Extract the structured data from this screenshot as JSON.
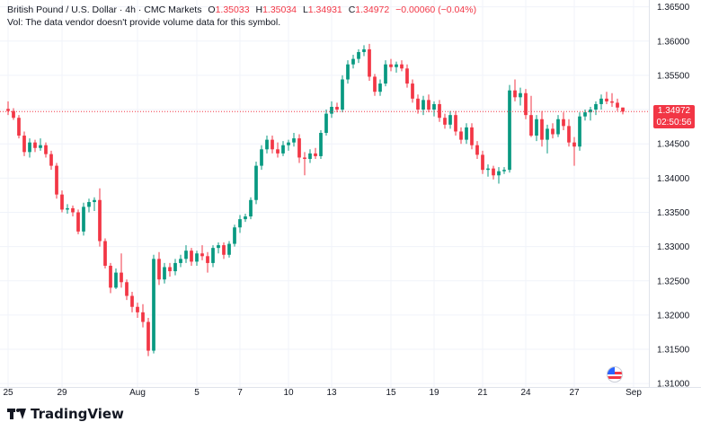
{
  "legend": {
    "symbol": "British Pound / U.S. Dollar · 4h · CMC Markets",
    "o_label": "O",
    "o_value": "1.35033",
    "h_label": "H",
    "h_value": "1.35034",
    "l_label": "L",
    "l_value": "1.34931",
    "c_label": "C",
    "c_value": "1.34972",
    "change": "−0.00060 (−0.04%)"
  },
  "vol_message": "Vol: The data vendor doesn't provide volume data for this symbol.",
  "price_tag": {
    "price": "1.34972",
    "countdown": "02:50:56"
  },
  "logo_text": "TradingView",
  "colors": {
    "up": "#089981",
    "down": "#f23645",
    "grid": "#f0f3fa",
    "axis_text": "#131722"
  },
  "chart_data": {
    "type": "candlestick",
    "title": "British Pound / U.S. Dollar",
    "interval": "4h",
    "x_tick_labels": [
      "25",
      "29",
      "Aug",
      "5",
      "7",
      "10",
      "13",
      "15",
      "19",
      "21",
      "24",
      "27",
      "Sep"
    ],
    "y_tick_labels": [
      "1.36500",
      "1.36000",
      "1.35500",
      "1.35000",
      "1.34500",
      "1.34000",
      "1.33500",
      "1.33000",
      "1.32500",
      "1.32000",
      "1.31500",
      "1.31000"
    ],
    "ylim": [
      1.3095,
      1.366
    ],
    "last_price": 1.34972,
    "last_price_line": "dotted",
    "grid": true,
    "candles": [
      [
        1.3501,
        1.3512,
        1.3492,
        1.3498
      ],
      [
        1.3498,
        1.3502,
        1.3485,
        1.3488
      ],
      [
        1.3488,
        1.3492,
        1.3458,
        1.3462
      ],
      [
        1.3462,
        1.3468,
        1.3432,
        1.3438
      ],
      [
        1.3438,
        1.3458,
        1.343,
        1.3452
      ],
      [
        1.3452,
        1.3456,
        1.3438,
        1.3444
      ],
      [
        1.3444,
        1.3458,
        1.344,
        1.3448
      ],
      [
        1.3448,
        1.3452,
        1.343,
        1.3435
      ],
      [
        1.3435,
        1.344,
        1.3412,
        1.3418
      ],
      [
        1.3418,
        1.3422,
        1.337,
        1.3376
      ],
      [
        1.3376,
        1.3382,
        1.335,
        1.3354
      ],
      [
        1.3354,
        1.3362,
        1.3348,
        1.3356
      ],
      [
        1.3356,
        1.336,
        1.3344,
        1.335
      ],
      [
        1.335,
        1.3354,
        1.3318,
        1.3322
      ],
      [
        1.3322,
        1.3364,
        1.3316,
        1.3358
      ],
      [
        1.3358,
        1.337,
        1.335,
        1.3365
      ],
      [
        1.3365,
        1.3372,
        1.3352,
        1.3368
      ],
      [
        1.3368,
        1.3385,
        1.33,
        1.3308
      ],
      [
        1.3308,
        1.3312,
        1.3268,
        1.3272
      ],
      [
        1.3272,
        1.3276,
        1.3232,
        1.324
      ],
      [
        1.324,
        1.3268,
        1.3238,
        1.3262
      ],
      [
        1.3262,
        1.329,
        1.324,
        1.3248
      ],
      [
        1.3248,
        1.3252,
        1.3222,
        1.3228
      ],
      [
        1.3228,
        1.3234,
        1.3204,
        1.3212
      ],
      [
        1.3212,
        1.3218,
        1.3196,
        1.3204
      ],
      [
        1.3204,
        1.3216,
        1.3182,
        1.319
      ],
      [
        1.319,
        1.3196,
        1.314,
        1.3148
      ],
      [
        1.3148,
        1.3288,
        1.3144,
        1.3282
      ],
      [
        1.3282,
        1.3292,
        1.3244,
        1.3252
      ],
      [
        1.3252,
        1.3276,
        1.3246,
        1.327
      ],
      [
        1.327,
        1.3276,
        1.3256,
        1.3264
      ],
      [
        1.3264,
        1.3282,
        1.3258,
        1.3276
      ],
      [
        1.3276,
        1.3288,
        1.327,
        1.3282
      ],
      [
        1.3282,
        1.3302,
        1.3276,
        1.3294
      ],
      [
        1.3294,
        1.3298,
        1.3272,
        1.3278
      ],
      [
        1.3278,
        1.3294,
        1.3272,
        1.329
      ],
      [
        1.329,
        1.3302,
        1.328,
        1.3286
      ],
      [
        1.3286,
        1.3292,
        1.3262,
        1.3276
      ],
      [
        1.3276,
        1.3302,
        1.327,
        1.3298
      ],
      [
        1.3298,
        1.3306,
        1.329,
        1.3302
      ],
      [
        1.3302,
        1.3306,
        1.3282,
        1.3288
      ],
      [
        1.3288,
        1.3308,
        1.3284,
        1.3304
      ],
      [
        1.3304,
        1.3332,
        1.33,
        1.3328
      ],
      [
        1.3328,
        1.3346,
        1.332,
        1.334
      ],
      [
        1.334,
        1.3348,
        1.3336,
        1.3344
      ],
      [
        1.3344,
        1.3372,
        1.334,
        1.3368
      ],
      [
        1.3368,
        1.3424,
        1.3362,
        1.3418
      ],
      [
        1.3418,
        1.3448,
        1.3412,
        1.3442
      ],
      [
        1.3442,
        1.3462,
        1.3436,
        1.3456
      ],
      [
        1.3456,
        1.3462,
        1.3436,
        1.3442
      ],
      [
        1.3442,
        1.3452,
        1.343,
        1.3436
      ],
      [
        1.3436,
        1.3454,
        1.3432,
        1.3448
      ],
      [
        1.3448,
        1.3456,
        1.344,
        1.3452
      ],
      [
        1.3452,
        1.3466,
        1.3446,
        1.3458
      ],
      [
        1.3458,
        1.3464,
        1.3422,
        1.343
      ],
      [
        1.343,
        1.3438,
        1.3404,
        1.3428
      ],
      [
        1.3428,
        1.3442,
        1.3422,
        1.3436
      ],
      [
        1.3436,
        1.3444,
        1.3428,
        1.3432
      ],
      [
        1.3432,
        1.347,
        1.3428,
        1.3466
      ],
      [
        1.3466,
        1.35,
        1.3462,
        1.3494
      ],
      [
        1.3494,
        1.3512,
        1.3488,
        1.3504
      ],
      [
        1.3504,
        1.351,
        1.3496,
        1.35
      ],
      [
        1.35,
        1.355,
        1.3496,
        1.3544
      ],
      [
        1.3544,
        1.3572,
        1.3538,
        1.3566
      ],
      [
        1.3566,
        1.358,
        1.356,
        1.3574
      ],
      [
        1.3574,
        1.3588,
        1.3568,
        1.3584
      ],
      [
        1.3584,
        1.3594,
        1.3578,
        1.3588
      ],
      [
        1.3588,
        1.3596,
        1.3542,
        1.3548
      ],
      [
        1.3548,
        1.3552,
        1.352,
        1.3526
      ],
      [
        1.3526,
        1.3544,
        1.352,
        1.3538
      ],
      [
        1.3538,
        1.3572,
        1.3534,
        1.3566
      ],
      [
        1.3566,
        1.3574,
        1.3556,
        1.3562
      ],
      [
        1.3562,
        1.357,
        1.3554,
        1.3566
      ],
      [
        1.3566,
        1.3572,
        1.3556,
        1.356
      ],
      [
        1.356,
        1.3566,
        1.3532,
        1.3538
      ],
      [
        1.3538,
        1.3544,
        1.351,
        1.3516
      ],
      [
        1.3516,
        1.3522,
        1.3494,
        1.35
      ],
      [
        1.35,
        1.352,
        1.3492,
        1.3514
      ],
      [
        1.3514,
        1.3522,
        1.3496,
        1.35
      ],
      [
        1.35,
        1.3512,
        1.349,
        1.3508
      ],
      [
        1.3508,
        1.3514,
        1.3482,
        1.3488
      ],
      [
        1.3488,
        1.3494,
        1.3472,
        1.3478
      ],
      [
        1.3478,
        1.3498,
        1.3472,
        1.3492
      ],
      [
        1.3492,
        1.3498,
        1.3462,
        1.3468
      ],
      [
        1.3468,
        1.3474,
        1.345,
        1.3456
      ],
      [
        1.3456,
        1.348,
        1.345,
        1.3474
      ],
      [
        1.3474,
        1.348,
        1.3442,
        1.3448
      ],
      [
        1.3448,
        1.3454,
        1.3428,
        1.3434
      ],
      [
        1.3434,
        1.344,
        1.3406,
        1.3412
      ],
      [
        1.3412,
        1.342,
        1.3402,
        1.3414
      ],
      [
        1.3414,
        1.3418,
        1.3398,
        1.3404
      ],
      [
        1.3404,
        1.3416,
        1.3392,
        1.341
      ],
      [
        1.341,
        1.3416,
        1.3406,
        1.3412
      ],
      [
        1.3412,
        1.3536,
        1.3408,
        1.3528
      ],
      [
        1.3528,
        1.3544,
        1.3512,
        1.3518
      ],
      [
        1.3518,
        1.3532,
        1.3506,
        1.3524
      ],
      [
        1.3524,
        1.353,
        1.3486,
        1.3492
      ],
      [
        1.3492,
        1.352,
        1.346,
        1.3462
      ],
      [
        1.3462,
        1.3492,
        1.3454,
        1.3486
      ],
      [
        1.3486,
        1.3498,
        1.3446,
        1.3456
      ],
      [
        1.3456,
        1.3478,
        1.3436,
        1.3472
      ],
      [
        1.3472,
        1.348,
        1.3458,
        1.3464
      ],
      [
        1.3464,
        1.3492,
        1.346,
        1.3486
      ],
      [
        1.3486,
        1.3496,
        1.347,
        1.3476
      ],
      [
        1.3476,
        1.3486,
        1.3446,
        1.3452
      ],
      [
        1.3452,
        1.346,
        1.3418,
        1.3446
      ],
      [
        1.3446,
        1.3496,
        1.344,
        1.349
      ],
      [
        1.349,
        1.35,
        1.3484,
        1.3496
      ],
      [
        1.3496,
        1.3504,
        1.3484,
        1.35
      ],
      [
        1.35,
        1.3512,
        1.3492,
        1.3508
      ],
      [
        1.3508,
        1.3522,
        1.35,
        1.3516
      ],
      [
        1.3516,
        1.3526,
        1.3508,
        1.3512
      ],
      [
        1.3512,
        1.3524,
        1.3504,
        1.351
      ],
      [
        1.351,
        1.3516,
        1.3498,
        1.3503
      ],
      [
        1.3503,
        1.3503,
        1.3493,
        1.3497
      ]
    ]
  }
}
